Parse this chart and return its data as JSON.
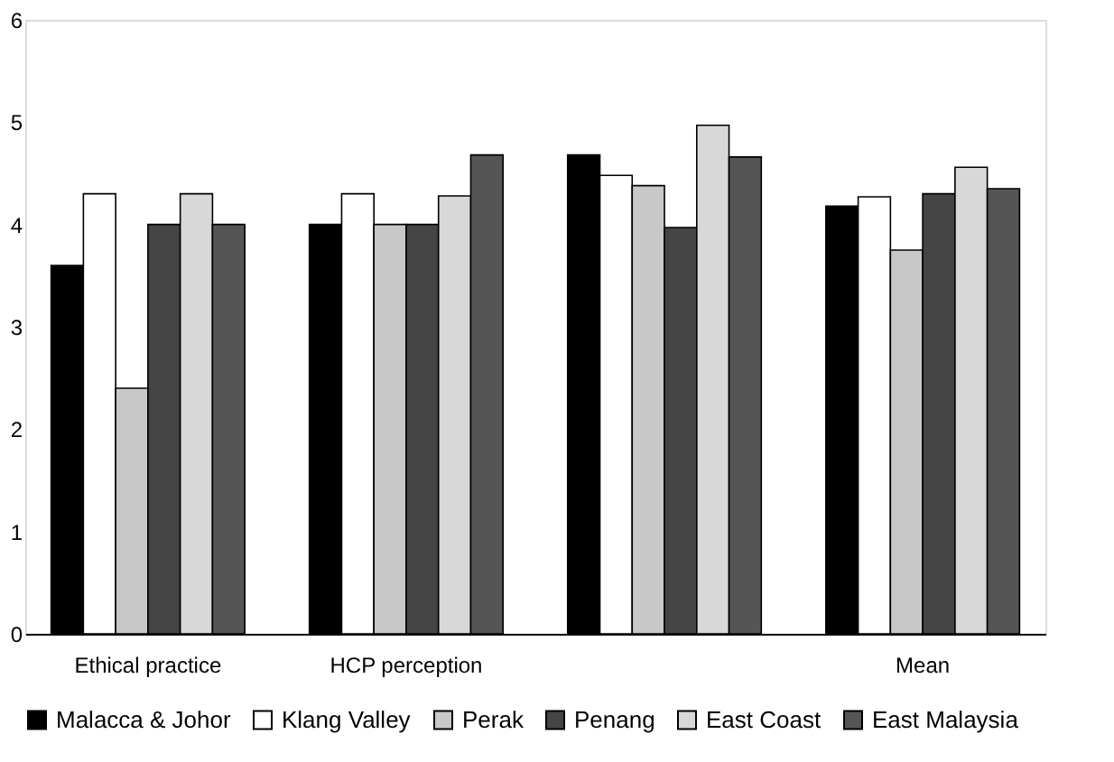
{
  "chart_data": {
    "type": "bar",
    "categories": [
      "Ethical practice",
      "HCP perception",
      null,
      "Mean"
    ],
    "series": [
      {
        "name": "Malacca & Johor",
        "color": "#000000",
        "values": [
          3.6,
          4.0,
          4.68,
          4.18
        ]
      },
      {
        "name": "Klang Valley",
        "color": "#ffffff",
        "values": [
          4.3,
          4.3,
          4.48,
          4.27
        ]
      },
      {
        "name": "Perak",
        "color": "#c8c8c8",
        "values": [
          2.4,
          4.0,
          4.38,
          3.75
        ]
      },
      {
        "name": "Penang",
        "color": "#454545",
        "values": [
          4.0,
          4.0,
          3.97,
          4.3
        ]
      },
      {
        "name": "East Coast",
        "color": "#d8d8d8",
        "values": [
          4.3,
          4.28,
          4.97,
          4.56
        ]
      },
      {
        "name": "East Malaysia",
        "color": "#555555",
        "values": [
          4.0,
          4.68,
          4.66,
          4.35
        ]
      }
    ],
    "ylim": [
      0,
      6
    ],
    "yticks": [
      0,
      1,
      2,
      3,
      4,
      5,
      6
    ],
    "grid": false,
    "legend": "bottom"
  }
}
